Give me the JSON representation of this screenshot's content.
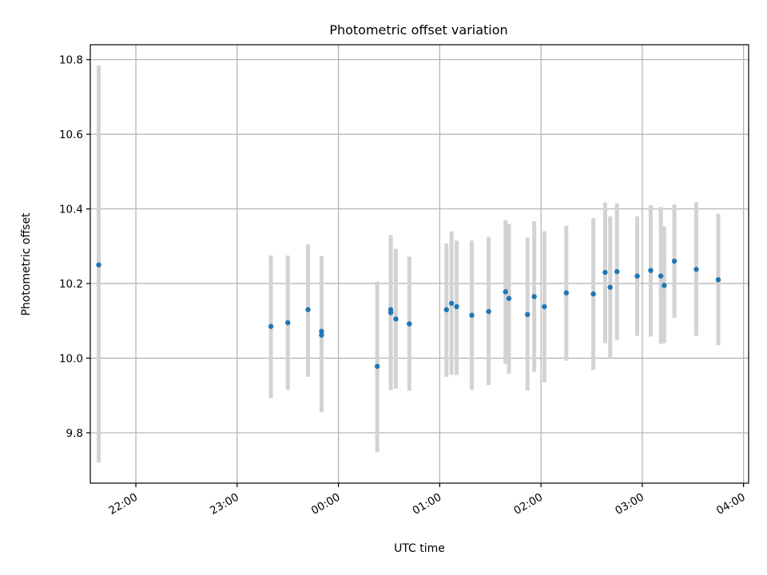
{
  "chart_data": {
    "type": "scatter",
    "title": "Photometric offset variation",
    "xlabel": "UTC time",
    "ylabel": "Photometric offset",
    "x_ticks": [
      {
        "label": "22:00",
        "t": "22:00"
      },
      {
        "label": "23:00",
        "t": "23:00"
      },
      {
        "label": "00:00",
        "t": "00:00"
      },
      {
        "label": "01:00",
        "t": "01:00"
      },
      {
        "label": "02:00",
        "t": "02:00"
      },
      {
        "label": "03:00",
        "t": "03:00"
      },
      {
        "label": "04:00",
        "t": "04:00"
      }
    ],
    "y_ticks": [
      "9.8",
      "10.0",
      "10.2",
      "10.4",
      "10.6",
      "10.8"
    ],
    "xlim": [
      "21:33",
      "04:03"
    ],
    "ylim": [
      9.665,
      10.84
    ],
    "grid": true,
    "colors": {
      "point": "#1f77b4",
      "errorbar": "#d3d3d3",
      "grid": "#b0b0b0"
    },
    "points": [
      {
        "t": "21:38",
        "y": 10.25,
        "lo": 9.72,
        "hi": 10.785
      },
      {
        "t": "23:20",
        "y": 10.085,
        "lo": 9.893,
        "hi": 10.275
      },
      {
        "t": "23:30",
        "y": 10.095,
        "lo": 9.915,
        "hi": 10.275
      },
      {
        "t": "23:42",
        "y": 10.13,
        "lo": 9.95,
        "hi": 10.305
      },
      {
        "t": "23:50",
        "y": 10.072,
        "lo": 9.87,
        "hi": 10.273
      },
      {
        "t": "23:50",
        "y": 10.062,
        "lo": 9.855,
        "hi": 10.27
      },
      {
        "t": "00:23",
        "y": 9.978,
        "lo": 9.748,
        "hi": 10.205
      },
      {
        "t": "00:31",
        "y": 10.13,
        "lo": 9.915,
        "hi": 10.33
      },
      {
        "t": "00:31",
        "y": 10.122,
        "lo": 9.915,
        "hi": 10.325
      },
      {
        "t": "00:34",
        "y": 10.105,
        "lo": 9.918,
        "hi": 10.293
      },
      {
        "t": "00:42",
        "y": 10.092,
        "lo": 9.913,
        "hi": 10.272
      },
      {
        "t": "01:04",
        "y": 10.13,
        "lo": 9.95,
        "hi": 10.308
      },
      {
        "t": "01:07",
        "y": 10.147,
        "lo": 9.955,
        "hi": 10.34
      },
      {
        "t": "01:10",
        "y": 10.138,
        "lo": 9.955,
        "hi": 10.315
      },
      {
        "t": "01:19",
        "y": 10.115,
        "lo": 9.915,
        "hi": 10.315
      },
      {
        "t": "01:29",
        "y": 10.125,
        "lo": 9.928,
        "hi": 10.325
      },
      {
        "t": "01:39",
        "y": 10.178,
        "lo": 9.985,
        "hi": 10.37
      },
      {
        "t": "01:41",
        "y": 10.16,
        "lo": 9.958,
        "hi": 10.36
      },
      {
        "t": "01:52",
        "y": 10.117,
        "lo": 9.913,
        "hi": 10.323
      },
      {
        "t": "01:56",
        "y": 10.165,
        "lo": 9.963,
        "hi": 10.367
      },
      {
        "t": "02:02",
        "y": 10.138,
        "lo": 9.935,
        "hi": 10.34
      },
      {
        "t": "02:15",
        "y": 10.175,
        "lo": 9.993,
        "hi": 10.355
      },
      {
        "t": "02:31",
        "y": 10.172,
        "lo": 9.968,
        "hi": 10.375
      },
      {
        "t": "02:38",
        "y": 10.23,
        "lo": 10.04,
        "hi": 10.417
      },
      {
        "t": "02:41",
        "y": 10.19,
        "lo": 10.0,
        "hi": 10.38
      },
      {
        "t": "02:45",
        "y": 10.232,
        "lo": 10.048,
        "hi": 10.415
      },
      {
        "t": "02:57",
        "y": 10.22,
        "lo": 10.06,
        "hi": 10.38
      },
      {
        "t": "03:05",
        "y": 10.235,
        "lo": 10.058,
        "hi": 10.41
      },
      {
        "t": "03:11",
        "y": 10.22,
        "lo": 10.038,
        "hi": 10.405
      },
      {
        "t": "03:13",
        "y": 10.195,
        "lo": 10.04,
        "hi": 10.353
      },
      {
        "t": "03:19",
        "y": 10.26,
        "lo": 10.108,
        "hi": 10.412
      },
      {
        "t": "03:32",
        "y": 10.238,
        "lo": 10.06,
        "hi": 10.418
      },
      {
        "t": "03:45",
        "y": 10.21,
        "lo": 10.035,
        "hi": 10.387
      }
    ]
  }
}
